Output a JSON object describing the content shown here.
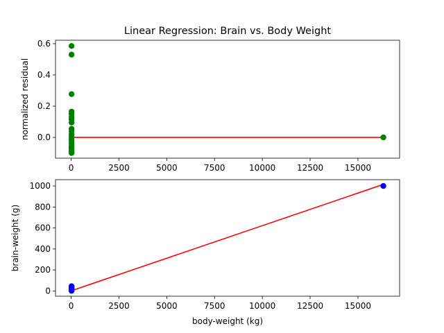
{
  "chart_data": [
    {
      "type": "scatter",
      "title": "Linear Regression: Brain vs. Body Weight",
      "xlabel": "",
      "ylabel": "normalized residual",
      "xlim": [
        -820,
        17180
      ],
      "ylim": [
        -0.133,
        0.622
      ],
      "xticks": [
        0,
        2500,
        5000,
        7500,
        10000,
        12500,
        15000
      ],
      "xtick_labels": [
        "0",
        "2500",
        "5000",
        "7500",
        "10000",
        "12500",
        "15000"
      ],
      "yticks": [
        0.0,
        0.2,
        0.4,
        0.6
      ],
      "ytick_labels": [
        "0.0",
        "0.2",
        "0.4",
        "0.6"
      ],
      "grid": false,
      "point_color": "#008000",
      "line_color": "#ff0000",
      "points": [
        {
          "x": 20,
          "y": 0.585
        },
        {
          "x": 20,
          "y": 0.53
        },
        {
          "x": 20,
          "y": 0.277
        },
        {
          "x": 20,
          "y": 0.165
        },
        {
          "x": 20,
          "y": 0.15
        },
        {
          "x": 20,
          "y": 0.13
        },
        {
          "x": 20,
          "y": 0.115
        },
        {
          "x": 20,
          "y": 0.095
        },
        {
          "x": 20,
          "y": 0.055
        },
        {
          "x": 20,
          "y": 0.04
        },
        {
          "x": 20,
          "y": 0.02
        },
        {
          "x": 20,
          "y": 0.005
        },
        {
          "x": 20,
          "y": -0.01
        },
        {
          "x": 20,
          "y": -0.025
        },
        {
          "x": 20,
          "y": -0.04
        },
        {
          "x": 20,
          "y": -0.055
        },
        {
          "x": 20,
          "y": -0.065
        },
        {
          "x": 20,
          "y": -0.075
        },
        {
          "x": 20,
          "y": -0.085
        },
        {
          "x": 20,
          "y": -0.095
        },
        {
          "x": 20,
          "y": -0.1
        },
        {
          "x": 16330,
          "y": 0.0
        }
      ],
      "line": [
        {
          "x": 20,
          "y": 0.0
        },
        {
          "x": 16330,
          "y": 0.0
        }
      ]
    },
    {
      "type": "scatter",
      "title": "",
      "xlabel": "body-weight (kg)",
      "ylabel": "brain-weight (g)",
      "xlim": [
        -820,
        17180
      ],
      "ylim": [
        -50,
        1060
      ],
      "xticks": [
        0,
        2500,
        5000,
        7500,
        10000,
        12500,
        15000
      ],
      "xtick_labels": [
        "0",
        "2500",
        "5000",
        "7500",
        "10000",
        "12500",
        "15000"
      ],
      "yticks": [
        0,
        200,
        400,
        600,
        800,
        1000
      ],
      "ytick_labels": [
        "0",
        "200",
        "400",
        "600",
        "800",
        "1000"
      ],
      "grid": false,
      "point_color": "#0000ff",
      "line_color": "#ff0000",
      "points": [
        {
          "x": 20,
          "y": 45
        },
        {
          "x": 20,
          "y": 38
        },
        {
          "x": 20,
          "y": 30
        },
        {
          "x": 20,
          "y": 22
        },
        {
          "x": 20,
          "y": 15
        },
        {
          "x": 20,
          "y": 8
        },
        {
          "x": 20,
          "y": 2
        },
        {
          "x": 16330,
          "y": 1000
        }
      ],
      "line": [
        {
          "x": 20,
          "y": 3
        },
        {
          "x": 16330,
          "y": 1015
        }
      ]
    }
  ]
}
